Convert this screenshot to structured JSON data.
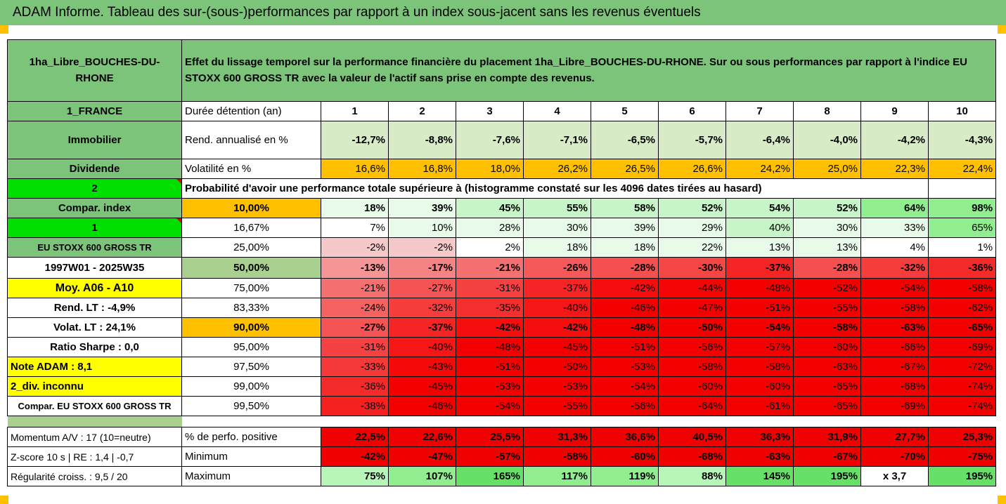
{
  "title": "ADAM Informe. Tableau des sur-(sous-)performances par rapport à un index sous-jacent sans les revenus éventuels",
  "colors": {
    "header_green": "#7cc47a",
    "orange": "#ffc000",
    "yellow": "#ffff00",
    "bright_green": "#00e000",
    "red_text": "#e00000"
  },
  "side": {
    "fund_name": "1ha_Libre_BOUCHES-DU-RHONE",
    "country": "1_FRANCE",
    "category": "Immobilier",
    "dividend": "Dividende",
    "num_2": "2",
    "compar_index": "Compar. index",
    "num_1": "1",
    "index_name": "EU STOXX 600 GROSS TR",
    "period": "1997W01 - 2025W35",
    "moy": "Moy. A06 - A10",
    "rend_lt": "Rend. LT :   -4,9%",
    "volat_lt": "Volat. LT :   24,1%",
    "sharpe": "Ratio Sharpe :    0,0",
    "note": "Note ADAM : 8,1",
    "div": "2_div. inconnu",
    "compar_full": "Compar. EU STOXX 600 GROSS TR",
    "momentum": "Momentum A/V : 17 (10=neutre)",
    "zscore": "Z-score 10 s  | RE : 1,4  | -0,7",
    "regularite": "Régularité croiss. : 9,5 / 20"
  },
  "description": "Effet du lissage temporel sur la performance financière du placement 1ha_Libre_BOUCHES-DU-RHONE. Sur ou sous performances par rapport à l'indice EU STOXX 600 GROSS TR avec la valeur de l'actif sans prise en compte des revenus.",
  "prob_caption": "Probabilité d'avoir une performance totale supérieure à (histogramme constaté sur les 4096 dates tirées au hasard)",
  "rows": [
    {
      "label": "Durée détention (an)",
      "values": [
        "1",
        "2",
        "3",
        "4",
        "5",
        "6",
        "7",
        "8",
        "9",
        "10"
      ]
    },
    {
      "label": "Rend. annualisé en %",
      "values": [
        "-12,7%",
        "-8,8%",
        "-7,6%",
        "-7,1%",
        "-6,5%",
        "-5,7%",
        "-6,4%",
        "-4,0%",
        "-4,2%",
        "-4,3%"
      ]
    },
    {
      "label": "Volatilité en %",
      "values": [
        "16,6%",
        "16,8%",
        "18,0%",
        "26,2%",
        "26,5%",
        "26,6%",
        "24,2%",
        "25,0%",
        "22,3%",
        "22,4%"
      ]
    }
  ],
  "prob": [
    {
      "label": "10,00%",
      "values": [
        "18%",
        "39%",
        "45%",
        "55%",
        "58%",
        "52%",
        "54%",
        "52%",
        "64%",
        "98%"
      ]
    },
    {
      "label": "16,67%",
      "values": [
        "7%",
        "10%",
        "28%",
        "30%",
        "39%",
        "29%",
        "40%",
        "30%",
        "33%",
        "65%"
      ]
    },
    {
      "label": "25,00%",
      "values": [
        "-2%",
        "-2%",
        "2%",
        "18%",
        "18%",
        "22%",
        "13%",
        "13%",
        "4%",
        "1%"
      ]
    },
    {
      "label": "50,00%",
      "values": [
        "-13%",
        "-17%",
        "-21%",
        "-26%",
        "-28%",
        "-30%",
        "-37%",
        "-28%",
        "-32%",
        "-36%"
      ]
    },
    {
      "label": "75,00%",
      "values": [
        "-21%",
        "-27%",
        "-31%",
        "-37%",
        "-42%",
        "-44%",
        "-48%",
        "-52%",
        "-54%",
        "-58%"
      ]
    },
    {
      "label": "83,33%",
      "values": [
        "-24%",
        "-32%",
        "-35%",
        "-40%",
        "-46%",
        "-47%",
        "-51%",
        "-55%",
        "-58%",
        "-62%"
      ]
    },
    {
      "label": "90,00%",
      "values": [
        "-27%",
        "-37%",
        "-42%",
        "-42%",
        "-48%",
        "-50%",
        "-54%",
        "-58%",
        "-63%",
        "-65%"
      ]
    },
    {
      "label": "95,00%",
      "values": [
        "-31%",
        "-40%",
        "-48%",
        "-45%",
        "-51%",
        "-56%",
        "-57%",
        "-60%",
        "-66%",
        "-69%"
      ]
    },
    {
      "label": "97,50%",
      "values": [
        "-33%",
        "-43%",
        "-51%",
        "-50%",
        "-53%",
        "-58%",
        "-58%",
        "-63%",
        "-67%",
        "-72%"
      ]
    },
    {
      "label": "99,00%",
      "values": [
        "-36%",
        "-45%",
        "-53%",
        "-53%",
        "-54%",
        "-60%",
        "-60%",
        "-65%",
        "-68%",
        "-74%"
      ]
    },
    {
      "label": "99,50%",
      "values": [
        "-38%",
        "-46%",
        "-54%",
        "-55%",
        "-56%",
        "-64%",
        "-61%",
        "-65%",
        "-69%",
        "-74%"
      ]
    }
  ],
  "bottom": [
    {
      "label": "% de perfo. positive",
      "values": [
        "22,5%",
        "22,6%",
        "25,5%",
        "31,3%",
        "36,6%",
        "40,5%",
        "36,3%",
        "31,9%",
        "27,7%",
        "25,3%"
      ]
    },
    {
      "label": "Minimum",
      "values": [
        "-42%",
        "-47%",
        "-57%",
        "-58%",
        "-60%",
        "-68%",
        "-63%",
        "-67%",
        "-70%",
        "-75%"
      ]
    },
    {
      "label": "Maximum",
      "values": [
        "75%",
        "107%",
        "165%",
        "117%",
        "119%",
        "88%",
        "145%",
        "195%",
        "x 3,7",
        "195%"
      ]
    }
  ]
}
